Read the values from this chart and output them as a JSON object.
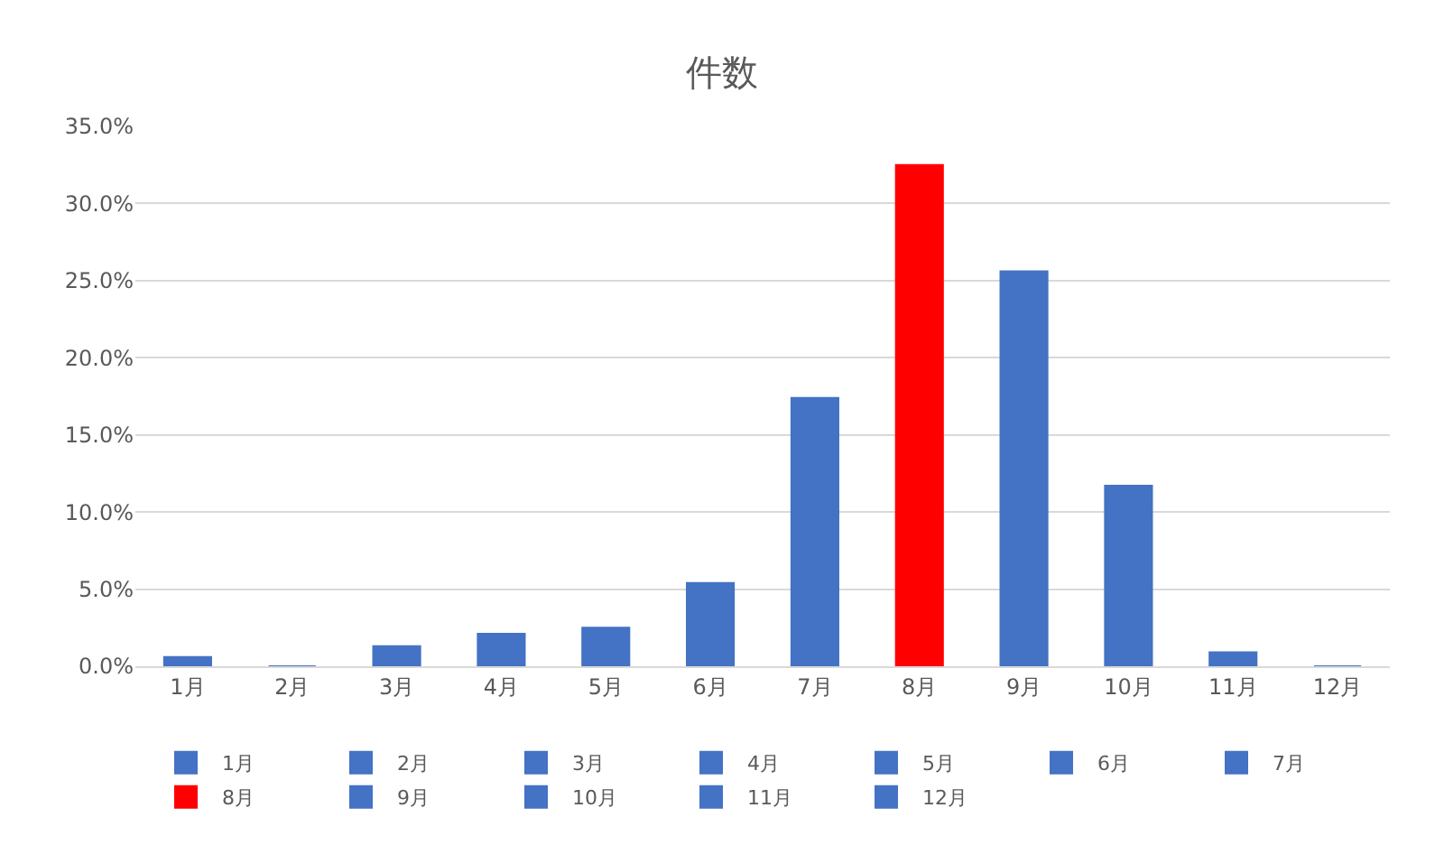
{
  "chart_data": {
    "type": "bar",
    "title": "件数",
    "categories": [
      "1月",
      "2月",
      "3月",
      "4月",
      "5月",
      "6月",
      "7月",
      "8月",
      "9月",
      "10月",
      "11月",
      "12月"
    ],
    "series": [
      {
        "name": "1月",
        "color": "#4472c4",
        "values": [
          0.6,
          null,
          null,
          null,
          null,
          null,
          null,
          null,
          null,
          null,
          null,
          null
        ]
      },
      {
        "name": "2月",
        "color": "#4472c4",
        "values": [
          null,
          0,
          null,
          null,
          null,
          null,
          null,
          null,
          null,
          null,
          null,
          null
        ]
      },
      {
        "name": "3月",
        "color": "#4472c4",
        "values": [
          null,
          null,
          1.3,
          null,
          null,
          null,
          null,
          null,
          null,
          null,
          null,
          null
        ]
      },
      {
        "name": "4月",
        "color": "#4472c4",
        "values": [
          null,
          null,
          null,
          2.1,
          null,
          null,
          null,
          null,
          null,
          null,
          null,
          null
        ]
      },
      {
        "name": "5月",
        "color": "#4472c4",
        "values": [
          null,
          null,
          null,
          null,
          2.5,
          null,
          null,
          null,
          null,
          null,
          null,
          null
        ]
      },
      {
        "name": "6月",
        "color": "#4472c4",
        "values": [
          null,
          null,
          null,
          null,
          null,
          5.4,
          null,
          null,
          null,
          null,
          null,
          null
        ]
      },
      {
        "name": "7月",
        "color": "#4472c4",
        "values": [
          null,
          null,
          null,
          null,
          null,
          null,
          17.4,
          null,
          null,
          null,
          null,
          null
        ]
      },
      {
        "name": "8月",
        "color": "#ff0000",
        "values": [
          null,
          null,
          null,
          null,
          null,
          null,
          null,
          32.5,
          null,
          null,
          null,
          null
        ]
      },
      {
        "name": "9月",
        "color": "#4472c4",
        "values": [
          null,
          null,
          null,
          null,
          null,
          null,
          null,
          null,
          25.6,
          null,
          null,
          null
        ]
      },
      {
        "name": "10月",
        "color": "#4472c4",
        "values": [
          null,
          null,
          null,
          null,
          null,
          null,
          null,
          null,
          null,
          11.7,
          null,
          null
        ]
      },
      {
        "name": "11月",
        "color": "#4472c4",
        "values": [
          null,
          null,
          null,
          null,
          null,
          null,
          null,
          null,
          null,
          null,
          0.9,
          null
        ]
      },
      {
        "name": "12月",
        "color": "#4472c4",
        "values": [
          null,
          null,
          null,
          null,
          null,
          null,
          null,
          null,
          null,
          null,
          null,
          0
        ]
      }
    ],
    "ylim": [
      0,
      35
    ],
    "yticks": [
      {
        "value": 0,
        "label": "0.0%"
      },
      {
        "value": 5,
        "label": "5.0%"
      },
      {
        "value": 10,
        "label": "10.0%"
      },
      {
        "value": 15,
        "label": "15.0%"
      },
      {
        "value": 20,
        "label": "20.0%"
      },
      {
        "value": 25,
        "label": "25.0%"
      },
      {
        "value": 30,
        "label": "30.0%"
      },
      {
        "value": 35,
        "label": "35.0%"
      }
    ],
    "grid": "y",
    "legend": "bottom"
  }
}
